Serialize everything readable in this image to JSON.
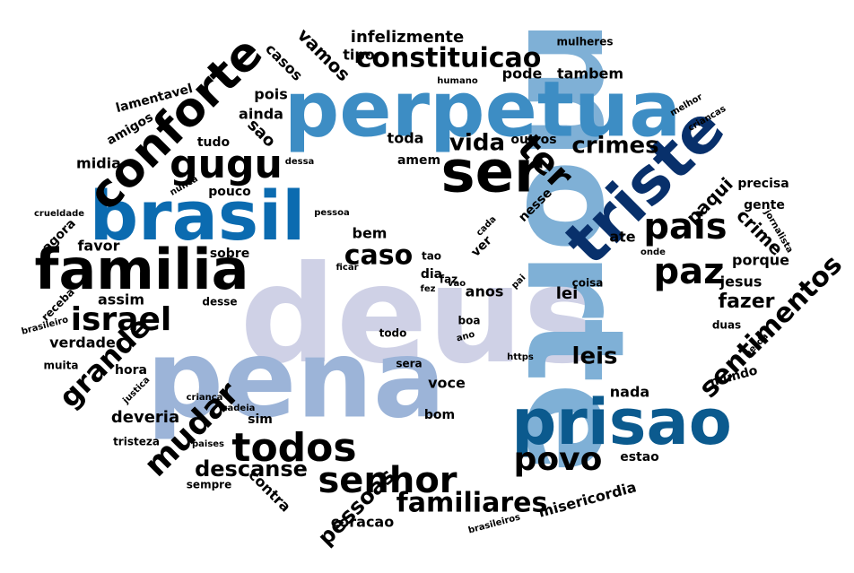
{
  "palette": {
    "deep_navy": "#08306b",
    "navy": "#084a7a",
    "dark_blue": "#0b5a8e",
    "blue": "#2e7fb9",
    "mid_blue": "#3d8dc4",
    "light_blue": "#7fb0d6",
    "steel_blue": "#9cb4d8",
    "lavender": "#cfd1e6",
    "black": "#000000"
  },
  "words": [
    {
      "text": "deus",
      "color": "#cfd1e6"
    },
    {
      "text": "morte",
      "color": "#7fb0d6"
    },
    {
      "text": "pena",
      "color": "#9cb4d8"
    },
    {
      "text": "perpetua",
      "color": "#3d8dc4"
    },
    {
      "text": "brasil",
      "color": "#0b6bb0"
    },
    {
      "text": "prisao",
      "color": "#0b5a8e"
    },
    {
      "text": "triste",
      "color": "#08306b"
    },
    {
      "text": "ser",
      "color": "#000000"
    },
    {
      "text": "familia",
      "color": "#000000"
    },
    {
      "text": "conforte",
      "color": "#000000"
    },
    {
      "text": "gugu",
      "color": "#000000"
    },
    {
      "text": "todos",
      "color": "#000000"
    },
    {
      "text": "senhor",
      "color": "#000000"
    },
    {
      "text": "ter",
      "color": "#000000"
    },
    {
      "text": "pais",
      "color": "#000000"
    },
    {
      "text": "paz",
      "color": "#000000"
    },
    {
      "text": "israel",
      "color": "#000000"
    },
    {
      "text": "mudar",
      "color": "#000000"
    },
    {
      "text": "grande",
      "color": "#000000"
    },
    {
      "text": "povo",
      "color": "#000000"
    },
    {
      "text": "constituicao",
      "color": "#000000"
    },
    {
      "text": "sentimentos",
      "color": "#000000"
    },
    {
      "text": "familiares",
      "color": "#000000"
    },
    {
      "text": "caso",
      "color": "#000000"
    },
    {
      "text": "crimes",
      "color": "#000000"
    },
    {
      "text": "vida",
      "color": "#000000"
    },
    {
      "text": "leis",
      "color": "#000000"
    },
    {
      "text": "descanse",
      "color": "#000000"
    },
    {
      "text": "pessoas",
      "color": "#000000"
    },
    {
      "text": "fazer",
      "color": "#000000"
    },
    {
      "text": "crime",
      "color": "#000000"
    },
    {
      "text": "paqui",
      "color": "#000000"
    },
    {
      "text": "vamos",
      "color": "#000000"
    },
    {
      "text": "infelizmente",
      "color": "#000000"
    },
    {
      "text": "tipo",
      "color": "#000000"
    },
    {
      "text": "casos",
      "color": "#000000"
    },
    {
      "text": "pode",
      "color": "#000000"
    },
    {
      "text": "tambem",
      "color": "#000000"
    },
    {
      "text": "pois",
      "color": "#000000"
    },
    {
      "text": "ainda",
      "color": "#000000"
    },
    {
      "text": "sao",
      "color": "#000000"
    },
    {
      "text": "tudo",
      "color": "#000000"
    },
    {
      "text": "midia",
      "color": "#000000"
    },
    {
      "text": "amigos",
      "color": "#000000"
    },
    {
      "text": "lamentavel",
      "color": "#000000"
    },
    {
      "text": "pouco",
      "color": "#000000"
    },
    {
      "text": "toda",
      "color": "#000000"
    },
    {
      "text": "amem",
      "color": "#000000"
    },
    {
      "text": "outros",
      "color": "#000000"
    },
    {
      "text": "humano",
      "color": "#000000"
    },
    {
      "text": "mulheres",
      "color": "#000000"
    },
    {
      "text": "criancas",
      "color": "#000000"
    },
    {
      "text": "precisa",
      "color": "#000000"
    },
    {
      "text": "gente",
      "color": "#000000"
    },
    {
      "text": "jornalista",
      "color": "#000000"
    },
    {
      "text": "porque",
      "color": "#000000"
    },
    {
      "text": "jesus",
      "color": "#000000"
    },
    {
      "text": "ate",
      "color": "#000000"
    },
    {
      "text": "nesse",
      "color": "#000000"
    },
    {
      "text": "onde",
      "color": "#000000"
    },
    {
      "text": "melhor",
      "color": "#000000"
    },
    {
      "text": "favor",
      "color": "#000000"
    },
    {
      "text": "agora",
      "color": "#000000"
    },
    {
      "text": "crueldade",
      "color": "#000000"
    },
    {
      "text": "nunca",
      "color": "#000000"
    },
    {
      "text": "dessa",
      "color": "#000000"
    },
    {
      "text": "pessoa",
      "color": "#000000"
    },
    {
      "text": "bem",
      "color": "#000000"
    },
    {
      "text": "sobre",
      "color": "#000000"
    },
    {
      "text": "ficar",
      "color": "#000000"
    },
    {
      "text": "assim",
      "color": "#000000"
    },
    {
      "text": "desse",
      "color": "#000000"
    },
    {
      "text": "verdade",
      "color": "#000000"
    },
    {
      "text": "receba",
      "color": "#000000"
    },
    {
      "text": "brasileiro",
      "color": "#000000"
    },
    {
      "text": "muita",
      "color": "#000000"
    },
    {
      "text": "hora",
      "color": "#000000"
    },
    {
      "text": "justica",
      "color": "#000000"
    },
    {
      "text": "deveria",
      "color": "#000000"
    },
    {
      "text": "crianca",
      "color": "#000000"
    },
    {
      "text": "cadeia",
      "color": "#000000"
    },
    {
      "text": "tristeza",
      "color": "#000000"
    },
    {
      "text": "paises",
      "color": "#000000"
    },
    {
      "text": "sim",
      "color": "#000000"
    },
    {
      "text": "sempre",
      "color": "#000000"
    },
    {
      "text": "contra",
      "color": "#000000"
    },
    {
      "text": "coracao",
      "color": "#000000"
    },
    {
      "text": "brasileiros",
      "color": "#000000"
    },
    {
      "text": "misericordia",
      "color": "#000000"
    },
    {
      "text": "estao",
      "color": "#000000"
    },
    {
      "text": "nada",
      "color": "#000000"
    },
    {
      "text": "mundo",
      "color": "#000000"
    },
    {
      "text": "perda",
      "color": "#000000"
    },
    {
      "text": "duas",
      "color": "#000000"
    },
    {
      "text": "lei",
      "color": "#000000"
    },
    {
      "text": "anos",
      "color": "#000000"
    },
    {
      "text": "coisa",
      "color": "#000000"
    },
    {
      "text": "pai",
      "color": "#000000"
    },
    {
      "text": "faz",
      "color": "#000000"
    },
    {
      "text": "vao",
      "color": "#000000"
    },
    {
      "text": "fez",
      "color": "#000000"
    },
    {
      "text": "dia",
      "color": "#000000"
    },
    {
      "text": "tao",
      "color": "#000000"
    },
    {
      "text": "ver",
      "color": "#000000"
    },
    {
      "text": "cada",
      "color": "#000000"
    },
    {
      "text": "boa",
      "color": "#000000"
    },
    {
      "text": "ano",
      "color": "#000000"
    },
    {
      "text": "todo",
      "color": "#000000"
    },
    {
      "text": "sera",
      "color": "#000000"
    },
    {
      "text": "https",
      "color": "#000000"
    },
    {
      "text": "voce",
      "color": "#000000"
    },
    {
      "text": "bom",
      "color": "#000000"
    }
  ]
}
